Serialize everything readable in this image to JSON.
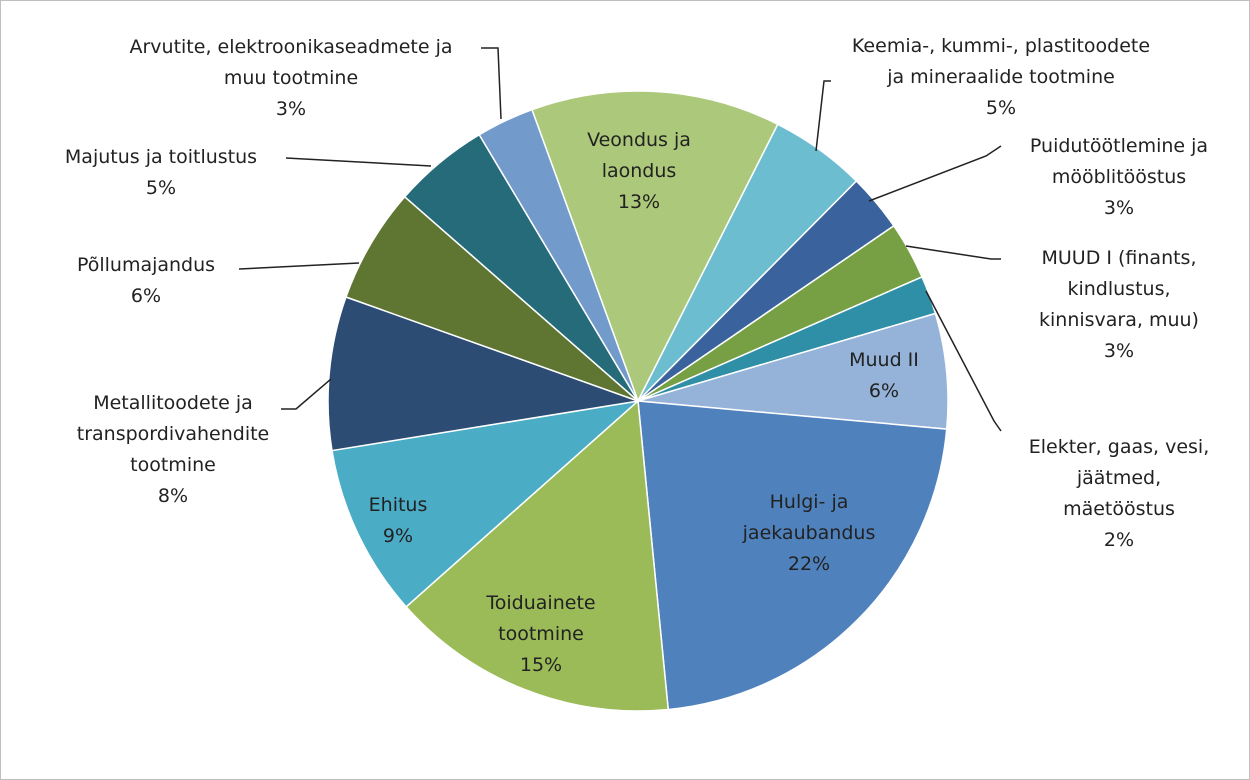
{
  "chart_data": {
    "type": "pie",
    "categories": [
      "Veondus ja\nlaondus",
      "Keemia-, kummi-, plastitoodete\nja mineraalide tootmine",
      "Puidutöötlemine ja\nmööblitööstus",
      "MUUD I (finants,\nkindlustus,\nkinnisvara, muu)",
      "Elekter, gaas, vesi,\njäätmed,\nmäetööstus",
      "Muud II",
      "Hulgi- ja\njaekaubandus",
      "Toiduainete\ntootmine",
      "Ehitus",
      "Metallitoodete ja\ntranspordivahendite\ntootmine",
      "Põllumajandus",
      "Majutus ja toitlustus",
      "Arvutite, elektroonikaseadmete ja\nmuu tootmine"
    ],
    "values": [
      13,
      5,
      3,
      3,
      2,
      6,
      22,
      15,
      9,
      8,
      6,
      5,
      3
    ],
    "value_labels": [
      "13%",
      "5%",
      "3%",
      "3%",
      "2%",
      "6%",
      "22%",
      "15%",
      "9%",
      "8%",
      "6%",
      "5%",
      "3%"
    ],
    "colors": [
      "#acc87a",
      "#6dbdd0",
      "#3a639e",
      "#76a043",
      "#2e8fa6",
      "#95b3d9",
      "#4f81bd",
      "#9bbb59",
      "#4bacc6",
      "#2c4c74",
      "#5e7632",
      "#256b7a",
      "#729acb"
    ]
  }
}
